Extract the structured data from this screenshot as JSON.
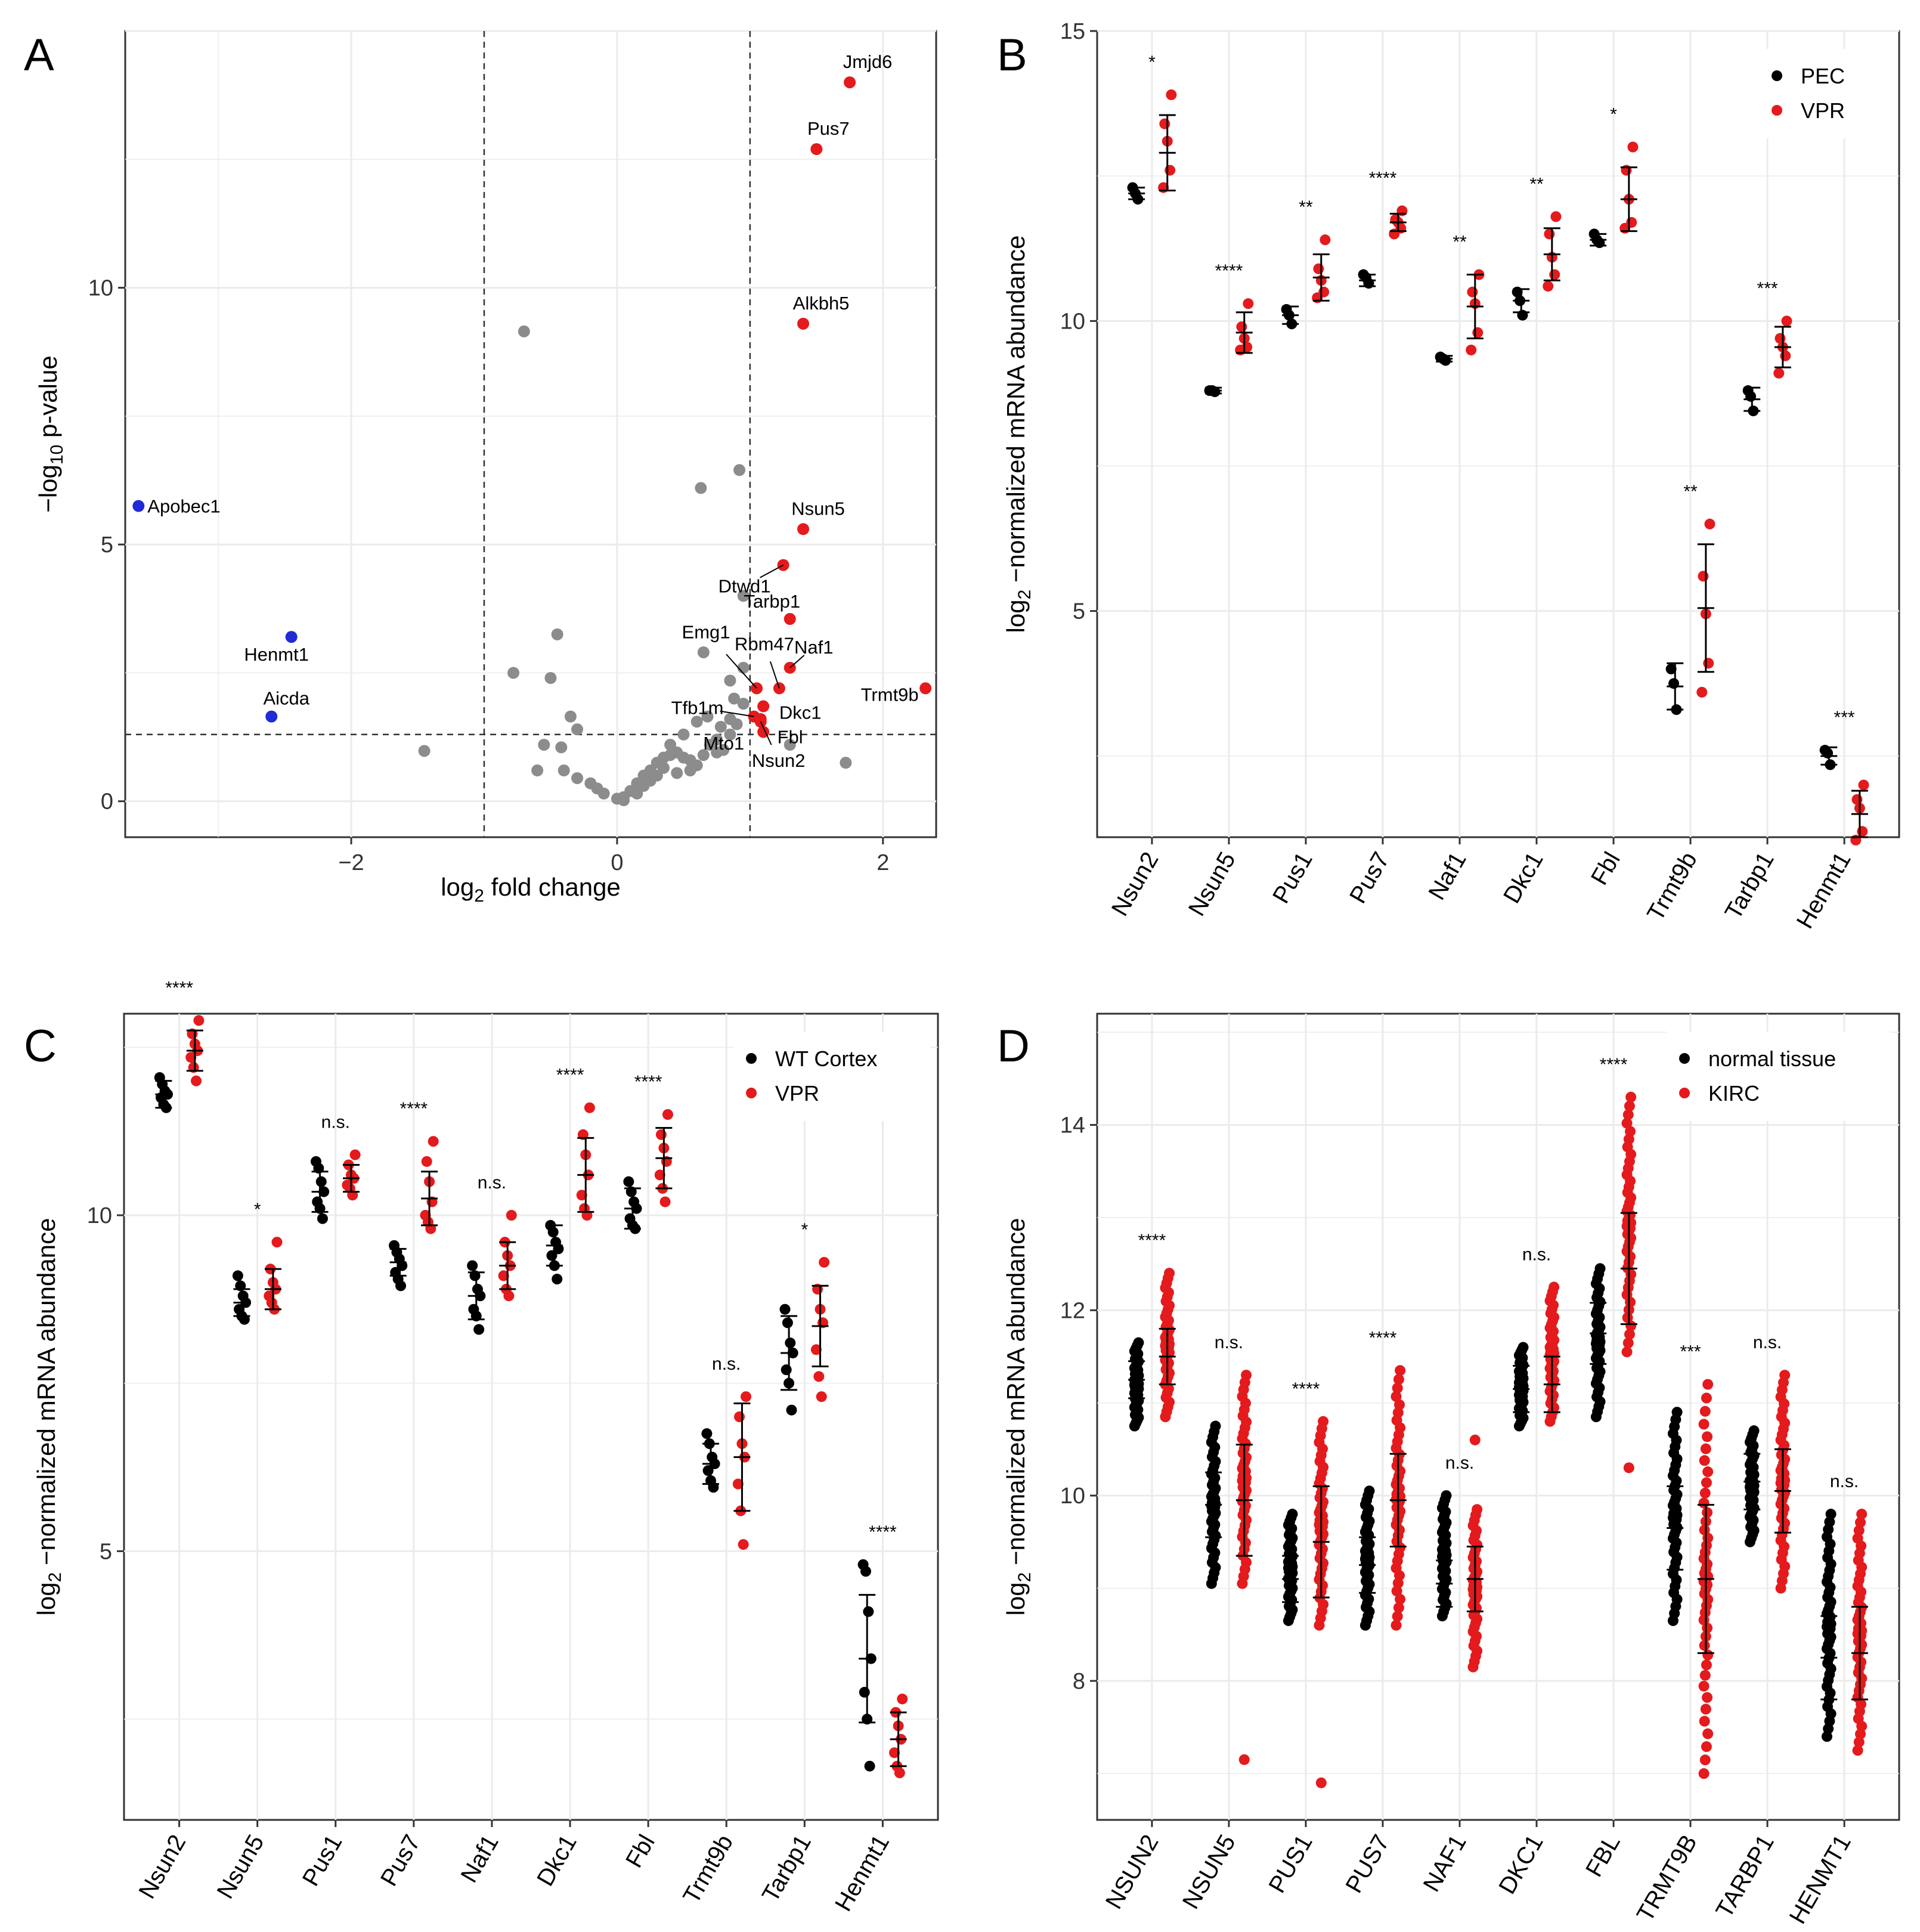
{
  "colors": {
    "red": "#e41a1c",
    "blue": "#1f2bd6",
    "grey": "#8c8c8c",
    "black": "#000000",
    "grid": "#ebebeb"
  },
  "chart_data": [
    {
      "panel": "A",
      "type": "scatter",
      "xlabel": "log2 fold change",
      "ylabel": "-log10 p-value",
      "xlim": [
        -3.7,
        2.4
      ],
      "ylim": [
        -0.7,
        15.0
      ],
      "xticks": [
        -2,
        0,
        2
      ],
      "yticks": [
        0,
        5,
        10
      ],
      "vlines": [
        -1,
        1
      ],
      "hline": 1.3,
      "red_points": [
        {
          "x": 1.75,
          "y": 14.0,
          "label": "Jmjd6"
        },
        {
          "x": 1.5,
          "y": 12.7,
          "label": "Pus7"
        },
        {
          "x": 1.4,
          "y": 9.3,
          "label": "Alkbh5"
        },
        {
          "x": 1.4,
          "y": 5.3,
          "label": "Nsun5"
        },
        {
          "x": 1.25,
          "y": 4.6,
          "label": "Dtwd1"
        },
        {
          "x": 1.3,
          "y": 3.55,
          "label": "Tarbp1"
        },
        {
          "x": 1.3,
          "y": 2.6,
          "label": "Naf1"
        },
        {
          "x": 2.32,
          "y": 2.2,
          "label": "Trmt9b"
        },
        {
          "x": 1.05,
          "y": 2.2,
          "label": "Emg1"
        },
        {
          "x": 1.22,
          "y": 2.2,
          "label": "Rbm47"
        },
        {
          "x": 1.1,
          "y": 1.85,
          "label": "Dkc1"
        },
        {
          "x": 1.03,
          "y": 1.65,
          "label": "Tfb1m"
        },
        {
          "x": 1.08,
          "y": 1.6,
          "label": "Mto1"
        },
        {
          "x": 1.1,
          "y": 1.35,
          "label": "Fbl"
        },
        {
          "x": 1.08,
          "y": 1.55,
          "label": "Nsun2"
        }
      ],
      "blue_points": [
        {
          "x": -3.6,
          "y": 5.75,
          "label": "Apobec1"
        },
        {
          "x": -2.45,
          "y": 3.2,
          "label": "Henmt1"
        },
        {
          "x": -2.6,
          "y": 1.65,
          "label": "Aicda"
        }
      ],
      "grey_points": [
        [
          -0.7,
          9.15
        ],
        [
          0.92,
          6.45
        ],
        [
          0.63,
          6.1
        ],
        [
          0.95,
          4.0
        ],
        [
          -0.45,
          3.25
        ],
        [
          -0.78,
          2.5
        ],
        [
          -0.5,
          2.4
        ],
        [
          0.65,
          2.9
        ],
        [
          0.85,
          2.35
        ],
        [
          0.95,
          2.6
        ],
        [
          -1.45,
          0.98
        ],
        [
          -0.35,
          1.65
        ],
        [
          -0.3,
          1.4
        ],
        [
          -0.55,
          1.1
        ],
        [
          -0.42,
          1.05
        ],
        [
          -0.6,
          0.6
        ],
        [
          -0.4,
          0.6
        ],
        [
          -0.3,
          0.45
        ],
        [
          -0.2,
          0.35
        ],
        [
          -0.15,
          0.25
        ],
        [
          -0.1,
          0.15
        ],
        [
          0.0,
          0.05
        ],
        [
          0.05,
          0.08
        ],
        [
          0.1,
          0.2
        ],
        [
          0.15,
          0.35
        ],
        [
          0.2,
          0.5
        ],
        [
          0.25,
          0.6
        ],
        [
          0.3,
          0.75
        ],
        [
          0.35,
          0.85
        ],
        [
          0.4,
          0.9
        ],
        [
          0.45,
          0.95
        ],
        [
          0.5,
          0.85
        ],
        [
          0.55,
          0.8
        ],
        [
          0.6,
          0.7
        ],
        [
          0.65,
          0.9
        ],
        [
          0.7,
          1.1
        ],
        [
          0.75,
          1.2
        ],
        [
          0.8,
          1.0
        ],
        [
          0.85,
          1.3
        ],
        [
          0.9,
          1.5
        ],
        [
          0.95,
          1.9
        ],
        [
          0.6,
          1.55
        ],
        [
          0.5,
          1.3
        ],
        [
          0.4,
          1.1
        ],
        [
          0.3,
          0.5
        ],
        [
          0.2,
          0.3
        ],
        [
          0.35,
          0.65
        ],
        [
          0.45,
          0.55
        ],
        [
          0.55,
          0.6
        ],
        [
          0.25,
          0.4
        ],
        [
          0.15,
          0.15
        ],
        [
          0.05,
          0.02
        ],
        [
          0.75,
          0.95
        ],
        [
          0.85,
          1.6
        ],
        [
          0.88,
          2.0
        ],
        [
          1.3,
          1.1
        ],
        [
          1.72,
          0.75
        ],
        [
          0.68,
          1.65
        ],
        [
          0.78,
          1.45
        ]
      ]
    },
    {
      "panel": "B",
      "type": "scatter",
      "ylabel": "log2 -normalized mRNA abundance",
      "ylim": [
        1.1,
        15.0
      ],
      "yticks": [
        5,
        10,
        15
      ],
      "categories": [
        "Nsun2",
        "Nsun5",
        "Pus1",
        "Pus7",
        "Naf1",
        "Dkc1",
        "Fbl",
        "Trmt9b",
        "Tarbp1",
        "Henmt1"
      ],
      "legend": [
        "PEC",
        "VPR"
      ],
      "significance": [
        "*",
        "****",
        "**",
        "****",
        "**",
        "**",
        "*",
        "**",
        "***",
        "***"
      ],
      "series": [
        {
          "name": "PEC",
          "means": [
            12.2,
            8.8,
            10.1,
            10.7,
            9.35,
            10.35,
            11.4,
            3.7,
            8.65,
            2.5
          ],
          "sd": [
            0.1,
            0.05,
            0.15,
            0.1,
            0.05,
            0.2,
            0.1,
            0.4,
            0.2,
            0.15
          ],
          "points": [
            [
              12.3,
              12.2,
              12.1
            ],
            [
              8.8,
              8.8,
              8.78
            ],
            [
              10.2,
              10.1,
              9.95
            ],
            [
              10.8,
              10.75,
              10.65
            ],
            [
              9.38,
              9.35,
              9.32
            ],
            [
              10.5,
              10.35,
              10.1
            ],
            [
              11.5,
              11.4,
              11.35
            ],
            [
              4.0,
              3.75,
              3.3
            ],
            [
              8.8,
              8.7,
              8.45
            ],
            [
              2.6,
              2.55,
              2.35
            ]
          ]
        },
        {
          "name": "VPR",
          "means": [
            12.9,
            9.8,
            10.75,
            11.7,
            10.25,
            11.15,
            12.1,
            5.05,
            9.55,
            1.5
          ],
          "sd": [
            0.65,
            0.35,
            0.4,
            0.15,
            0.55,
            0.45,
            0.55,
            1.1,
            0.35,
            0.4
          ],
          "points": [
            [
              13.9,
              13.4,
              13.1,
              12.6,
              12.3
            ],
            [
              10.3,
              9.9,
              9.7,
              9.55,
              9.5
            ],
            [
              11.4,
              10.9,
              10.7,
              10.5,
              10.4
            ],
            [
              11.9,
              11.75,
              11.7,
              11.6,
              11.5
            ],
            [
              10.8,
              10.5,
              10.3,
              9.8,
              9.5
            ],
            [
              11.8,
              11.5,
              11.1,
              10.8,
              10.6
            ],
            [
              13.0,
              12.6,
              12.1,
              11.7,
              11.6
            ],
            [
              6.5,
              5.6,
              4.95,
              4.1,
              3.6
            ],
            [
              10.0,
              9.7,
              9.55,
              9.4,
              9.1
            ],
            [
              2.0,
              1.75,
              1.6,
              1.2,
              1.05
            ]
          ]
        }
      ]
    },
    {
      "panel": "C",
      "type": "scatter",
      "ylabel": "log2 -normalized mRNA abundance",
      "ylim": [
        1.0,
        13.0
      ],
      "yticks": [
        5,
        10
      ],
      "categories": [
        "Nsun2",
        "Nsun5",
        "Pus1",
        "Pus7",
        "Naf1",
        "Dkc1",
        "Fbl",
        "Trmt9b",
        "Tarbp1",
        "Henmt1"
      ],
      "legend": [
        "WT Cortex",
        "VPR"
      ],
      "significance": [
        "****",
        "*",
        "n.s.",
        "****",
        "n.s.",
        "****",
        "****",
        "n.s.",
        "*",
        "****"
      ],
      "series": [
        {
          "name": "WT Cortex",
          "means": [
            11.8,
            8.7,
            10.35,
            9.3,
            8.8,
            9.55,
            10.1,
            6.3,
            7.95,
            3.4
          ],
          "sd": [
            0.2,
            0.2,
            0.3,
            0.2,
            0.35,
            0.3,
            0.3,
            0.3,
            0.55,
            0.95
          ],
          "points": [
            [
              12.05,
              11.95,
              11.85,
              11.8,
              11.75,
              11.65,
              11.6
            ],
            [
              9.1,
              8.95,
              8.8,
              8.7,
              8.6,
              8.5,
              8.45
            ],
            [
              10.8,
              10.7,
              10.5,
              10.35,
              10.2,
              10.1,
              9.95
            ],
            [
              9.55,
              9.45,
              9.35,
              9.25,
              9.15,
              9.05,
              8.95
            ],
            [
              9.25,
              9.1,
              8.9,
              8.8,
              8.6,
              8.5,
              8.3
            ],
            [
              9.85,
              9.75,
              9.6,
              9.5,
              9.4,
              9.25,
              9.05
            ],
            [
              10.5,
              10.35,
              10.2,
              10.1,
              9.95,
              9.85,
              9.8
            ],
            [
              6.75,
              6.6,
              6.4,
              6.3,
              6.2,
              6.05,
              5.95
            ],
            [
              8.6,
              8.4,
              8.1,
              7.95,
              7.7,
              7.5,
              7.1
            ],
            [
              4.8,
              4.7,
              4.1,
              3.4,
              2.9,
              2.5,
              1.8
            ]
          ]
        },
        {
          "name": "VPR",
          "means": [
            12.45,
            8.9,
            10.55,
            10.25,
            9.25,
            10.6,
            10.85,
            6.4,
            8.35,
            2.2
          ],
          "sd": [
            0.3,
            0.3,
            0.2,
            0.4,
            0.35,
            0.55,
            0.45,
            0.8,
            0.6,
            0.4
          ],
          "points": [
            [
              12.9,
              12.7,
              12.55,
              12.45,
              12.35,
              12.2,
              12.0
            ],
            [
              9.6,
              9.2,
              9.0,
              8.9,
              8.8,
              8.7,
              8.6
            ],
            [
              10.9,
              10.75,
              10.6,
              10.55,
              10.45,
              10.4,
              10.3
            ],
            [
              11.1,
              10.8,
              10.5,
              10.2,
              10.0,
              9.9,
              9.8
            ],
            [
              10.0,
              9.6,
              9.4,
              9.25,
              9.1,
              8.9,
              8.8
            ],
            [
              11.6,
              11.2,
              10.9,
              10.6,
              10.3,
              10.1,
              10.0
            ],
            [
              11.5,
              11.2,
              11.0,
              10.8,
              10.6,
              10.4,
              10.2
            ],
            [
              7.3,
              7.0,
              6.6,
              6.4,
              6.0,
              5.6,
              5.1
            ],
            [
              9.3,
              8.9,
              8.6,
              8.4,
              8.0,
              7.6,
              7.3
            ],
            [
              2.8,
              2.6,
              2.4,
              2.2,
              2.0,
              1.8,
              1.7
            ]
          ]
        }
      ]
    },
    {
      "panel": "D",
      "type": "scatter",
      "ylabel": "log2 -normalized mRNA abundance",
      "ylim": [
        6.5,
        15.2
      ],
      "yticks": [
        8,
        10,
        12,
        14
      ],
      "categories": [
        "NSUN2",
        "NSUN5",
        "PUS1",
        "PUS7",
        "NAF1",
        "DKC1",
        "FBL",
        "TRMT9B",
        "TARBP1",
        "HENMT1"
      ],
      "legend": [
        "normal tissue",
        "KIRC"
      ],
      "significance": [
        "****",
        "n.s.",
        "****",
        "****",
        "n.s.",
        "n.s.",
        "****",
        "***",
        "n.s.",
        "n.s."
      ],
      "series": [
        {
          "name": "normal tissue",
          "means": [
            11.25,
            9.9,
            9.1,
            9.25,
            9.05,
            11.15,
            11.75,
            9.65,
            10.15,
            8.25
          ],
          "sd": [
            0.2,
            0.35,
            0.25,
            0.3,
            0.25,
            0.25,
            0.33,
            0.45,
            0.3,
            0.45
          ],
          "range": [
            [
              10.75,
              11.65
            ],
            [
              9.05,
              10.75
            ],
            [
              8.65,
              9.8
            ],
            [
              8.6,
              10.05
            ],
            [
              8.7,
              10.0
            ],
            [
              10.75,
              11.6
            ],
            [
              10.85,
              12.45
            ],
            [
              8.65,
              10.9
            ],
            [
              9.5,
              10.7
            ],
            [
              7.4,
              9.8
            ]
          ]
        },
        {
          "name": "KIRC",
          "means": [
            11.5,
            9.95,
            9.5,
            9.95,
            9.1,
            11.2,
            12.45,
            9.1,
            10.05,
            8.3
          ],
          "sd": [
            0.3,
            0.6,
            0.6,
            0.5,
            0.35,
            0.3,
            0.6,
            0.8,
            0.45,
            0.5
          ],
          "range": [
            [
              10.85,
              12.4
            ],
            [
              9.05,
              11.3
            ],
            [
              8.6,
              10.8
            ],
            [
              8.6,
              11.35
            ],
            [
              8.15,
              9.85
            ],
            [
              10.8,
              12.25
            ],
            [
              11.55,
              14.3
            ],
            [
              7.0,
              11.2
            ],
            [
              9.0,
              11.3
            ],
            [
              7.25,
              9.8
            ]
          ],
          "outliers": [
            [],
            [
              7.15
            ],
            [
              6.9
            ],
            [],
            [
              10.6
            ],
            [],
            [
              10.3
            ],
            [],
            [],
            []
          ]
        }
      ]
    }
  ]
}
